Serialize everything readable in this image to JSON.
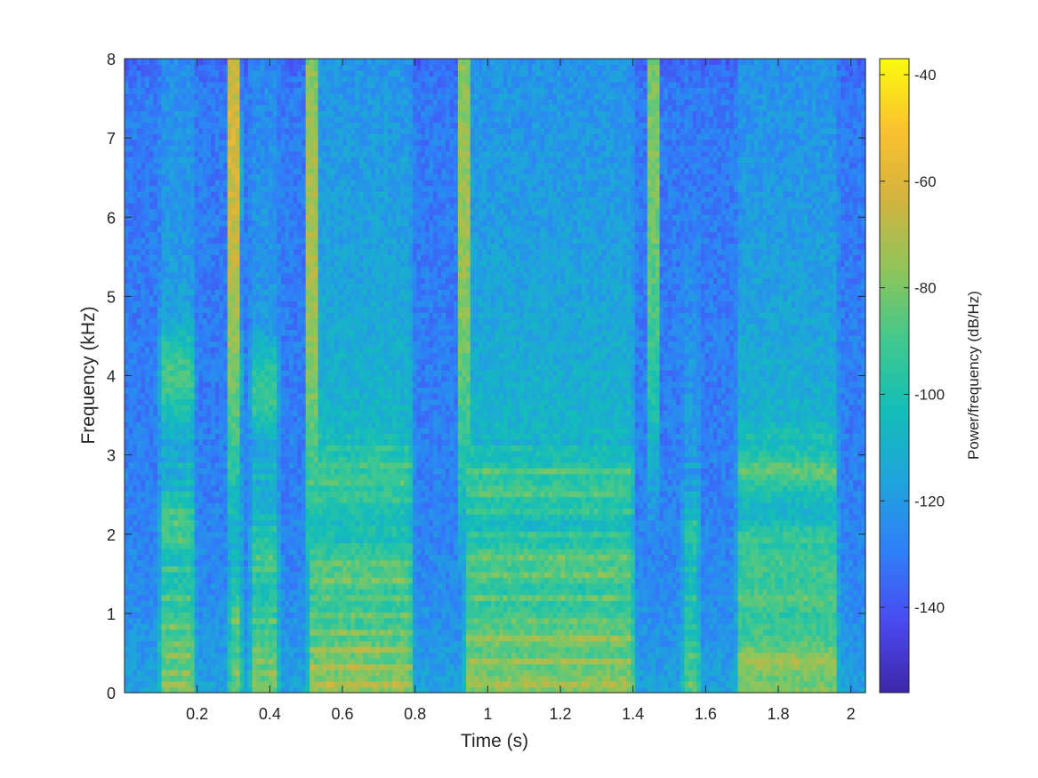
{
  "chart_data": {
    "type": "heatmap",
    "title": "",
    "xlabel": "Time (s)",
    "ylabel": "Frequency (kHz)",
    "xlim": [
      0.0,
      2.04
    ],
    "ylim": [
      0,
      8
    ],
    "x_ticks": [
      0.2,
      0.4,
      0.6,
      0.8,
      1,
      1.2,
      1.4,
      1.6,
      1.8,
      2
    ],
    "x_tick_labels": [
      "0.2",
      "0.4",
      "0.6",
      "0.8",
      "1",
      "1.2",
      "1.4",
      "1.6",
      "1.8",
      "2"
    ],
    "y_ticks": [
      0,
      1,
      2,
      3,
      4,
      5,
      6,
      7,
      8
    ],
    "y_tick_labels": [
      "0",
      "1",
      "2",
      "3",
      "4",
      "5",
      "6",
      "7",
      "8"
    ],
    "grid": false,
    "colormap": "parula",
    "colormap_stops": [
      "#3e26a8",
      "#4a4af0",
      "#2f7ff8",
      "#1fa4dc",
      "#13beb8",
      "#40c88e",
      "#8fc55a",
      "#d3b33e",
      "#fbc22e",
      "#f9fb0e"
    ],
    "colorbar": {
      "label": "Power/frequency (dB/Hz)",
      "range": [
        -156,
        -37
      ],
      "ticks": [
        -40,
        -60,
        -80,
        -100,
        -120,
        -140
      ],
      "tick_labels": [
        "-40",
        "-60",
        "-80",
        "-100",
        "-120",
        "-140"
      ]
    },
    "voiced_segments": [
      {
        "start": 0.09,
        "end": 0.2,
        "f0": 0.12,
        "peak_db": -58,
        "formants": [
          0.6,
          2.1,
          4.0
        ]
      },
      {
        "start": 0.28,
        "end": 0.33,
        "f0": 0.13,
        "peak_db": -62,
        "formants": [
          1.0,
          4.0,
          6.5
        ]
      },
      {
        "start": 0.34,
        "end": 0.43,
        "f0": 0.13,
        "peak_db": -60,
        "formants": [
          0.5,
          1.7,
          3.8
        ]
      },
      {
        "start": 0.5,
        "end": 0.8,
        "f0": 0.11,
        "peak_db": -55,
        "formants": [
          0.5,
          1.5,
          2.7
        ]
      },
      {
        "start": 0.93,
        "end": 1.41,
        "f0": 0.1,
        "peak_db": -56,
        "formants": [
          0.7,
          1.6,
          2.6
        ]
      },
      {
        "start": 1.53,
        "end": 1.59,
        "f0": 0.12,
        "peak_db": -66,
        "formants": [
          0.4,
          2.0
        ]
      },
      {
        "start": 1.68,
        "end": 1.97,
        "f0": 0.08,
        "peak_db": -57,
        "formants": [
          0.5,
          1.6,
          2.8
        ]
      }
    ],
    "fricatives": [
      {
        "start": 0.28,
        "end": 0.32,
        "center_khz": 7.0,
        "peak_db": -64
      },
      {
        "start": 0.5,
        "end": 0.53,
        "center_khz": 6.0,
        "peak_db": -72
      },
      {
        "start": 0.92,
        "end": 0.95,
        "center_khz": 6.5,
        "peak_db": -74
      },
      {
        "start": 1.44,
        "end": 1.47,
        "center_khz": 7.0,
        "peak_db": -80
      }
    ]
  }
}
